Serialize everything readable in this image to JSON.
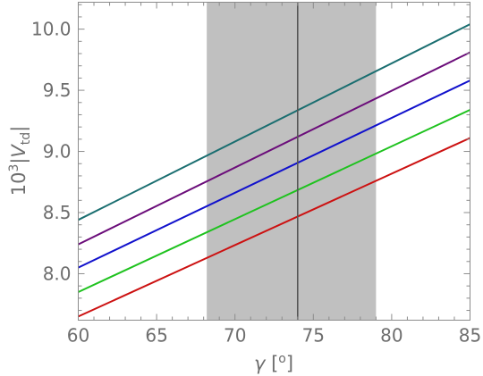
{
  "chart_data": {
    "type": "line",
    "xlabel": "γ [°]",
    "ylabel": "10³|Vtd|",
    "xlim": [
      60,
      85
    ],
    "ylim": [
      7.62,
      10.22
    ],
    "xticks": [
      "60",
      "65",
      "70",
      "75",
      "80",
      "85"
    ],
    "yticks": [
      "8.0",
      "8.5",
      "9.0",
      "9.5",
      "10.0"
    ],
    "band": {
      "x": [
        68.2,
        79.0
      ],
      "color": "#c0c0c0"
    },
    "vline": {
      "x": 74.0,
      "color": "#555555"
    },
    "grid": false,
    "series": [
      {
        "x": [
          60,
          85
        ],
        "values": [
          8.44,
          10.04
        ],
        "color": "#1a6e70"
      },
      {
        "x": [
          60,
          85
        ],
        "values": [
          8.24,
          9.81
        ],
        "color": "#6b0d7a"
      },
      {
        "x": [
          60,
          85
        ],
        "values": [
          8.05,
          9.58
        ],
        "color": "#1111cc"
      },
      {
        "x": [
          60,
          85
        ],
        "values": [
          7.85,
          9.34
        ],
        "color": "#1ec21e"
      },
      {
        "x": [
          60,
          85
        ],
        "values": [
          7.65,
          9.11
        ],
        "color": "#cc1111"
      }
    ]
  }
}
